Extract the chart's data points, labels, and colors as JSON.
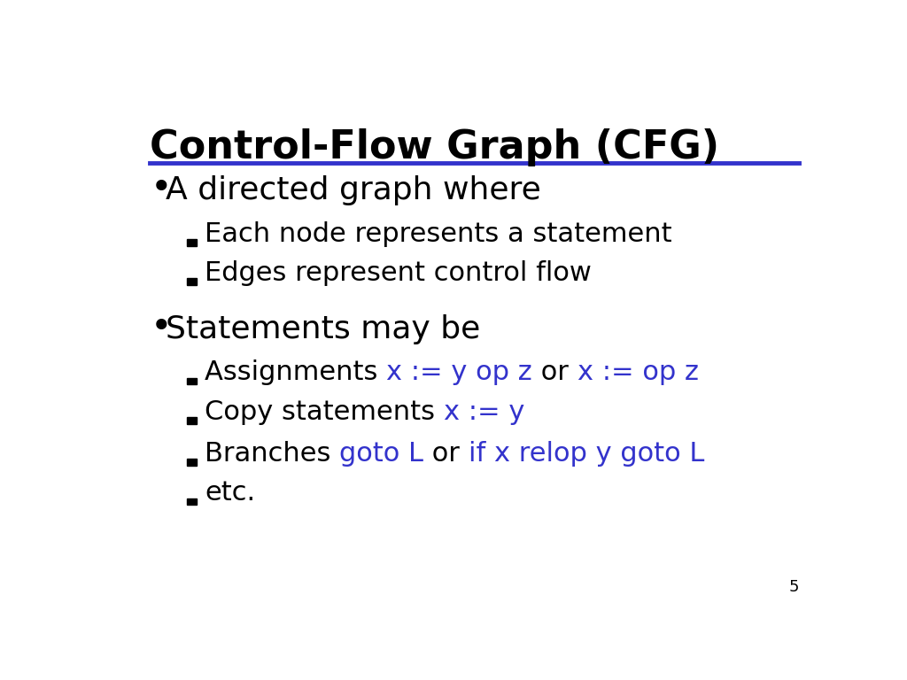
{
  "title": "Control-Flow Graph (CFG)",
  "title_fontsize": 32,
  "title_color": "#000000",
  "line_color": "#3333cc",
  "background_color": "#ffffff",
  "slide_number": "5",
  "bullet1_text": "A directed graph where",
  "bullet1_fontsize": 26,
  "sub_bullet_fontsize": 22,
  "sub1_text": "Each node represents a statement",
  "sub2_text": "Edges represent control flow",
  "bullet2_text": "Statements may be",
  "bullet2_fontsize": 26,
  "sub3_parts": [
    {
      "text": "Assignments ",
      "color": "#000000"
    },
    {
      "text": "x := y op z",
      "color": "#3333cc"
    },
    {
      "text": " or ",
      "color": "#000000"
    },
    {
      "text": "x := op z",
      "color": "#3333cc"
    }
  ],
  "sub4_parts": [
    {
      "text": "Copy statements ",
      "color": "#000000"
    },
    {
      "text": "x := y",
      "color": "#3333cc"
    }
  ],
  "sub5_parts": [
    {
      "text": "Branches ",
      "color": "#000000"
    },
    {
      "text": "goto L",
      "color": "#3333cc"
    },
    {
      "text": " or ",
      "color": "#000000"
    },
    {
      "text": "if x relop y goto L",
      "color": "#3333cc"
    }
  ],
  "sub6_parts": [
    {
      "text": "etc.",
      "color": "#000000"
    }
  ],
  "small_square_color": "#000000",
  "bullet_dot_color": "#000000"
}
